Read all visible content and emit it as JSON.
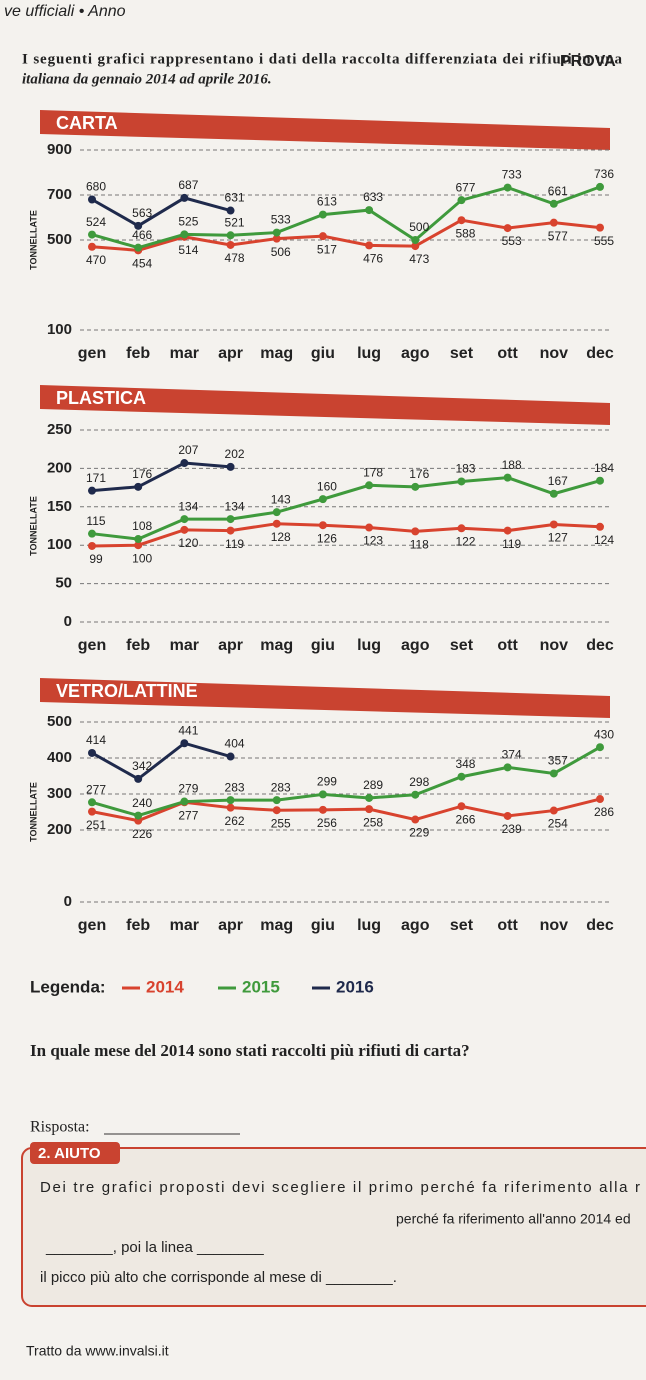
{
  "header": {
    "running": "ve ufficiali • Anno",
    "badge": "PROVA",
    "intro": [
      "I seguenti grafici rappresentano i dati della raccolta differenziata dei rifiuti in una",
      "italiana da gennaio 2014 ad aprile 2016."
    ]
  },
  "chart_data": [
    {
      "type": "line",
      "title": "CARTA",
      "ylabel": "TONNELLATE",
      "categories": [
        "gen",
        "feb",
        "mar",
        "apr",
        "mag",
        "giu",
        "lug",
        "ago",
        "set",
        "ott",
        "nov",
        "dec"
      ],
      "ylim": [
        100,
        900
      ],
      "yticks": [
        100,
        500,
        700,
        900
      ],
      "grid": true,
      "series": [
        {
          "name": "2014",
          "color": "#d8432e",
          "values": [
            470,
            454,
            514,
            478,
            506,
            517,
            476,
            473,
            588,
            553,
            577,
            555
          ]
        },
        {
          "name": "2015",
          "color": "#3f9a3c",
          "values": [
            524,
            466,
            525,
            521,
            533,
            613,
            633,
            500,
            677,
            733,
            661,
            736
          ]
        },
        {
          "name": "2016",
          "color": "#1f2a4c",
          "values": [
            680,
            563,
            687,
            631,
            null,
            null,
            null,
            null,
            null,
            null,
            null,
            null
          ]
        }
      ]
    },
    {
      "type": "line",
      "title": "PLASTICA",
      "ylabel": "TONNELLATE",
      "categories": [
        "gen",
        "feb",
        "mar",
        "apr",
        "mag",
        "giu",
        "lug",
        "ago",
        "set",
        "ott",
        "nov",
        "dec"
      ],
      "ylim": [
        0,
        250
      ],
      "yticks": [
        0,
        50,
        100,
        150,
        200,
        250
      ],
      "grid": true,
      "series": [
        {
          "name": "2014",
          "color": "#d8432e",
          "values": [
            99,
            100,
            120,
            119,
            128,
            126,
            123,
            118,
            122,
            119,
            127,
            124
          ]
        },
        {
          "name": "2015",
          "color": "#3f9a3c",
          "values": [
            115,
            108,
            134,
            134,
            143,
            160,
            178,
            176,
            183,
            188,
            167,
            184
          ]
        },
        {
          "name": "2016",
          "color": "#1f2a4c",
          "values": [
            171,
            176,
            207,
            202,
            null,
            null,
            null,
            null,
            null,
            null,
            null,
            null
          ]
        }
      ]
    },
    {
      "type": "line",
      "title": "VETRO/LATTINE",
      "ylabel": "TONNELLATE",
      "categories": [
        "gen",
        "feb",
        "mar",
        "apr",
        "mag",
        "giu",
        "lug",
        "ago",
        "set",
        "ott",
        "nov",
        "dec"
      ],
      "ylim": [
        0,
        500
      ],
      "yticks": [
        0,
        200,
        300,
        400,
        500
      ],
      "grid": true,
      "series": [
        {
          "name": "2014",
          "color": "#d8432e",
          "values": [
            251,
            226,
            277,
            262,
            255,
            256,
            258,
            229,
            266,
            239,
            254,
            286
          ]
        },
        {
          "name": "2015",
          "color": "#3f9a3c",
          "values": [
            277,
            240,
            279,
            283,
            283,
            299,
            289,
            298,
            348,
            374,
            357,
            430
          ]
        },
        {
          "name": "2016",
          "color": "#1f2a4c",
          "values": [
            414,
            342,
            441,
            404,
            null,
            null,
            null,
            null,
            null,
            null,
            null,
            null
          ]
        }
      ]
    }
  ],
  "legend_label": "Legenda:",
  "question": "In quale mese del 2014 sono stati raccolti più rifiuti di carta?",
  "answer_label": "Risposta:",
  "help": {
    "title": "2. AIUTO",
    "lines": [
      "Dei tre grafici proposti devi scegliere il primo perché fa riferimento alla r",
      "perché fa riferimento all'anno 2014 ed",
      "________, poi la linea ________",
      "il picco più alto che corrisponde al mese di ________."
    ]
  },
  "source": "Tratto da www.invalsi.it"
}
